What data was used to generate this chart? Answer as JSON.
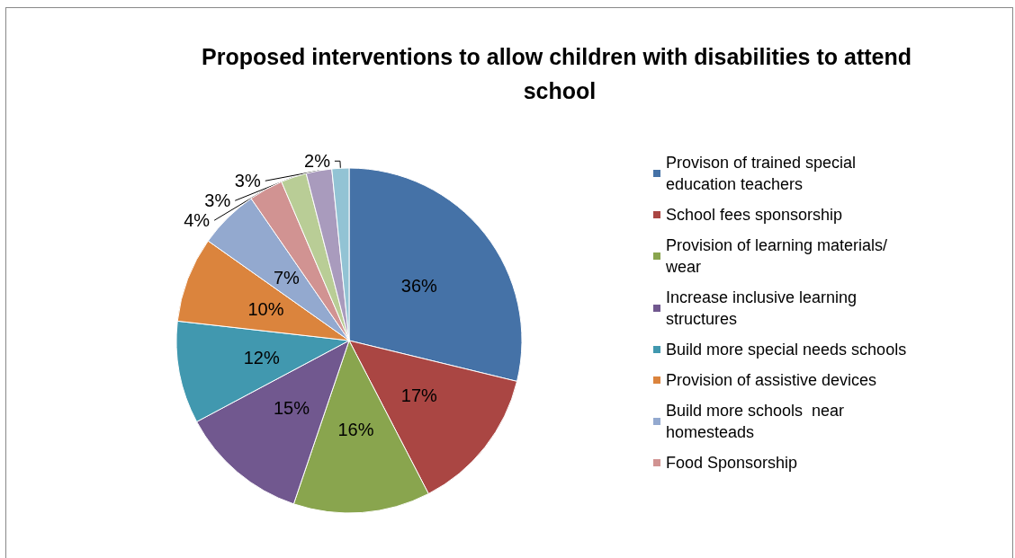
{
  "chart_data": {
    "type": "pie",
    "title": "Proposed interventions to allow children with disabilities to attend school",
    "categories": [
      "Provison of trained special education teachers",
      "School fees sponsorship",
      "Provision of learning materials/wear",
      "Increase inclusive learning structures",
      "Build more special needs schools",
      "Provision of assistive devices",
      "Build more schools  near homesteads",
      "Food Sponsorship",
      null,
      null,
      null
    ],
    "values": [
      36,
      17,
      16,
      15,
      12,
      10,
      7,
      4,
      3,
      3,
      2
    ],
    "value_labels": [
      "36%",
      "17%",
      "16%",
      "15%",
      "12%",
      "10%",
      "7%",
      "4%",
      "3%",
      "3%",
      "2%"
    ],
    "colors": [
      "#4572a7",
      "#aa4643",
      "#89a54e",
      "#71588f",
      "#4198af",
      "#db843d",
      "#93a9cf",
      "#d19392",
      "#b9cd96",
      "#a99bbd",
      "#92c3d4"
    ],
    "legend": "right"
  }
}
